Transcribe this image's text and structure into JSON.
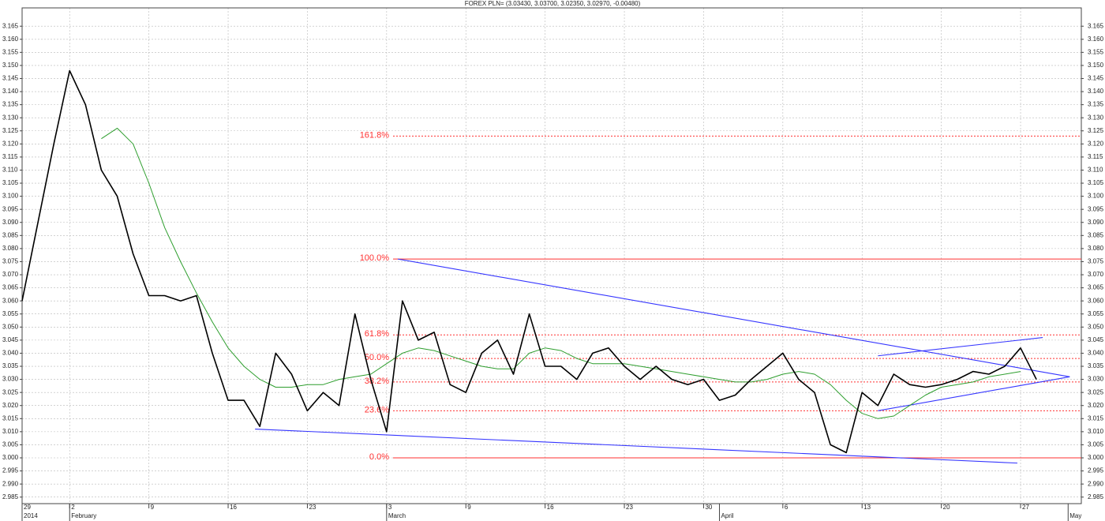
{
  "chart_data": {
    "type": "line",
    "title": "FOREX PLN= (3.03430, 3.03700, 3.02350, 3.02970, -0.00480)",
    "categories": [
      "29",
      null,
      null,
      "2",
      null,
      null,
      null,
      null,
      "9",
      null,
      null,
      null,
      null,
      "16",
      null,
      null,
      null,
      null,
      "23",
      null,
      null,
      null,
      null,
      "3",
      null,
      null,
      null,
      null,
      "9",
      null,
      null,
      null,
      null,
      "16",
      null,
      null,
      null,
      null,
      "23",
      null,
      null,
      null,
      null,
      "30",
      null,
      null,
      null,
      null,
      "6",
      null,
      null,
      null,
      null,
      "13",
      null,
      null,
      null,
      null,
      "20",
      null,
      null,
      null,
      null,
      "27",
      null,
      null,
      null
    ],
    "category_groups": [
      "2014",
      null,
      null,
      "February",
      null,
      null,
      null,
      null,
      null,
      null,
      null,
      null,
      null,
      null,
      null,
      null,
      null,
      null,
      null,
      null,
      null,
      null,
      null,
      "March",
      null,
      null,
      null,
      null,
      null,
      null,
      null,
      null,
      null,
      null,
      null,
      null,
      null,
      null,
      null,
      null,
      null,
      null,
      null,
      null,
      "April",
      null,
      null,
      null,
      null,
      null,
      null,
      null,
      null,
      null,
      null,
      null,
      null,
      null,
      null,
      null,
      null,
      null,
      null,
      null,
      null,
      null,
      "May"
    ],
    "series": [
      {
        "color": "#000000",
        "values": [
          3.06,
          3.09,
          3.12,
          3.148,
          3.135,
          3.11,
          3.1,
          3.078,
          3.062,
          3.062,
          3.06,
          3.062,
          3.04,
          3.022,
          3.022,
          3.012,
          3.04,
          3.032,
          3.018,
          3.025,
          3.02,
          3.055,
          3.03,
          3.01,
          3.06,
          3.045,
          3.048,
          3.028,
          3.025,
          3.04,
          3.045,
          3.032,
          3.055,
          3.035,
          3.035,
          3.03,
          3.04,
          3.042,
          3.035,
          3.03,
          3.035,
          3.03,
          3.028,
          3.03,
          3.022,
          3.024,
          3.03,
          3.035,
          3.04,
          3.03,
          3.025,
          3.005,
          3.002,
          3.025,
          3.02,
          3.032,
          3.028,
          3.027,
          3.028,
          3.03,
          3.033,
          3.032,
          3.035,
          3.042,
          3.03,
          null,
          null
        ]
      },
      {
        "color": "#2e9e2e",
        "values": [
          null,
          null,
          null,
          null,
          null,
          3.122,
          3.126,
          3.12,
          3.105,
          3.088,
          3.075,
          3.063,
          3.052,
          3.042,
          3.035,
          3.03,
          3.027,
          3.027,
          3.028,
          3.028,
          3.03,
          3.031,
          3.032,
          3.036,
          3.04,
          3.042,
          3.041,
          3.039,
          3.037,
          3.035,
          3.034,
          3.034,
          3.04,
          3.042,
          3.041,
          3.038,
          3.036,
          3.036,
          3.036,
          3.035,
          3.034,
          3.033,
          3.032,
          3.031,
          3.03,
          3.029,
          3.029,
          3.03,
          3.032,
          3.033,
          3.032,
          3.028,
          3.022,
          3.017,
          3.015,
          3.016,
          3.02,
          3.024,
          3.027,
          3.028,
          3.029,
          3.031,
          3.032,
          3.033,
          null,
          null,
          null
        ]
      }
    ],
    "trendlines": [
      {
        "color": "#3535ff",
        "from": [
          14.7,
          3.011
        ],
        "to": [
          62.8,
          2.998
        ]
      },
      {
        "color": "#3535ff",
        "from": [
          23.7,
          3.076
        ],
        "to": [
          66.1,
          3.031
        ]
      },
      {
        "color": "#3535ff",
        "from": [
          54,
          3.018
        ],
        "to": [
          66.1,
          3.031
        ]
      },
      {
        "color": "#3535ff",
        "from": [
          54,
          3.039
        ],
        "to": [
          64.4,
          3.046
        ]
      }
    ],
    "fib_color": "#ff3030",
    "fib_levels": [
      {
        "level_name": "161.8%",
        "value": 3.123,
        "dashed": true
      },
      {
        "level_name": "100.0%",
        "value": 3.076,
        "dashed": false
      },
      {
        "level_name": "61.8%",
        "value": 3.047,
        "dashed": true
      },
      {
        "level_name": "50.0%",
        "value": 3.038,
        "dashed": true
      },
      {
        "level_name": "38.2%",
        "value": 3.029,
        "dashed": true
      },
      {
        "level_name": "23.6%",
        "value": 3.018,
        "dashed": true
      },
      {
        "level_name": "0.0%",
        "value": 3.0,
        "dashed": false
      }
    ],
    "ylim": [
      2.9825,
      3.172
    ],
    "yticks": [
      2.985,
      {
        "value": 2.99,
        "label": "2.990"
      },
      2.995,
      {
        "value": 3,
        "label": "3.000"
      },
      3.005,
      {
        "value": 3.01,
        "label": "3.010"
      },
      3.015,
      {
        "value": 3.02,
        "label": "3.020"
      },
      3.025,
      {
        "value": 3.03,
        "label": "3.030"
      },
      3.035,
      {
        "value": 3.04,
        "label": "3.040"
      },
      3.045,
      {
        "value": 3.05,
        "label": "3.050"
      },
      3.055,
      {
        "value": 3.06,
        "label": "3.060"
      },
      3.065,
      {
        "value": 3.07,
        "label": "3.070"
      },
      3.075,
      {
        "value": 3.08,
        "label": "3.080"
      },
      3.085,
      {
        "value": 3.09,
        "label": "3.090"
      },
      3.095,
      {
        "value": 3.1,
        "label": "3.100"
      },
      3.105,
      {
        "value": 3.11,
        "label": "3.110"
      },
      3.115,
      {
        "value": 3.12,
        "label": "3.120"
      },
      3.125,
      {
        "value": 3.13,
        "label": "3.130"
      },
      3.135,
      {
        "value": 3.14,
        "label": "3.140"
      },
      3.145,
      {
        "value": 3.15,
        "label": "3.150"
      },
      3.155,
      {
        "value": 3.16,
        "label": "3.160"
      },
      3.165
    ],
    "grid": true
  }
}
